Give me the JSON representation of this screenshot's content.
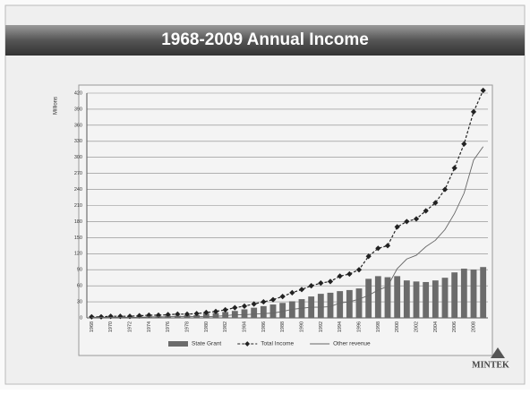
{
  "chart_data": {
    "type": "bar-line",
    "title": "1968-2009 Annual Income",
    "y_label": "Millions",
    "logo": "MINTEK",
    "categories": [
      "1968",
      null,
      "1970",
      null,
      "1972",
      null,
      "1974",
      null,
      "1976",
      null,
      "1978",
      null,
      "1980",
      null,
      "1982",
      null,
      "1984",
      null,
      "1986",
      null,
      "1988",
      null,
      "1990",
      null,
      "1992",
      null,
      "1994",
      null,
      "1996",
      null,
      "1998",
      null,
      "2000",
      null,
      "2002",
      null,
      "2004",
      null,
      "2006",
      null,
      "2008",
      null
    ],
    "series": [
      {
        "name": "State Grant",
        "type": "bar",
        "color": "#6b6b6b",
        "values": [
          1,
          1,
          2,
          2,
          2,
          3,
          3,
          3,
          4,
          4,
          5,
          5,
          8,
          9,
          11,
          13,
          16,
          19,
          22,
          25,
          28,
          31,
          35,
          40,
          45,
          47,
          50,
          52,
          55,
          73,
          78,
          76,
          78,
          70,
          68,
          67,
          70,
          75,
          85,
          92,
          90,
          95
        ]
      },
      {
        "name": "Total Income",
        "type": "line",
        "color": "#222222",
        "dashed": true,
        "markers": true,
        "values": [
          2,
          2,
          3,
          3,
          3,
          4,
          5,
          5,
          6,
          7,
          7,
          8,
          10,
          12,
          15,
          19,
          22,
          26,
          30,
          34,
          40,
          47,
          53,
          60,
          65,
          68,
          78,
          82,
          90,
          115,
          130,
          135,
          170,
          180,
          185,
          200,
          215,
          240,
          280,
          325,
          385,
          425
        ]
      },
      {
        "name": "Other revenue",
        "type": "line",
        "color": "#666666",
        "dashed": false,
        "markers": false,
        "values": [
          1,
          1,
          1,
          1,
          1,
          1,
          2,
          2,
          2,
          3,
          2,
          3,
          2,
          3,
          4,
          6,
          6,
          7,
          8,
          9,
          12,
          16,
          18,
          20,
          20,
          21,
          28,
          30,
          35,
          42,
          52,
          59,
          92,
          110,
          117,
          133,
          145,
          165,
          195,
          233,
          295,
          320
        ]
      }
    ],
    "ylim": [
      0,
      420
    ],
    "yticks": [
      0,
      30,
      60,
      90,
      120,
      150,
      180,
      210,
      240,
      270,
      300,
      330,
      360,
      390,
      420
    ],
    "grid": true
  }
}
